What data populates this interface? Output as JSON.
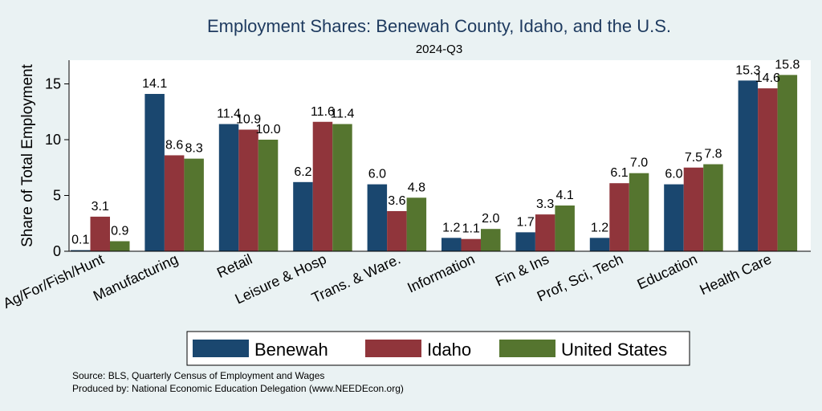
{
  "chart_data": {
    "type": "bar",
    "title": "Employment Shares: Benewah County, Idaho, and the U.S.",
    "subtitle": "2024-Q3",
    "ylabel": "Share of Total Employment",
    "xlabel": "",
    "ylim": [
      0,
      17
    ],
    "yticks": [
      0,
      5,
      10,
      15
    ],
    "categories": [
      "Ag/For/Fish/Hunt",
      "Manufacturing",
      "Retail",
      "Leisure & Hosp",
      "Trans. & Ware.",
      "Information",
      "Fin & Ins",
      "Prof, Sci, Tech",
      "Education",
      "Health Care"
    ],
    "series": [
      {
        "name": "Benewah",
        "color": "#1a476f",
        "values": [
          0.1,
          14.1,
          11.4,
          6.2,
          6.0,
          1.2,
          1.7,
          1.2,
          6.0,
          15.3
        ]
      },
      {
        "name": "Idaho",
        "color": "#90353b",
        "values": [
          3.1,
          8.6,
          10.9,
          11.6,
          3.6,
          1.1,
          3.3,
          6.1,
          7.5,
          14.6
        ]
      },
      {
        "name": "United States",
        "color": "#55752f",
        "values": [
          0.9,
          8.3,
          10.0,
          11.4,
          4.8,
          2.0,
          4.1,
          7.0,
          7.8,
          15.8
        ]
      }
    ],
    "legend_position": "bottom",
    "grid": false
  },
  "notes": {
    "source": "Source: BLS, Quarterly Census of Employment and Wages",
    "produced": "Produced by: National Economic Education Delegation (www.NEEDEcon.org)"
  }
}
